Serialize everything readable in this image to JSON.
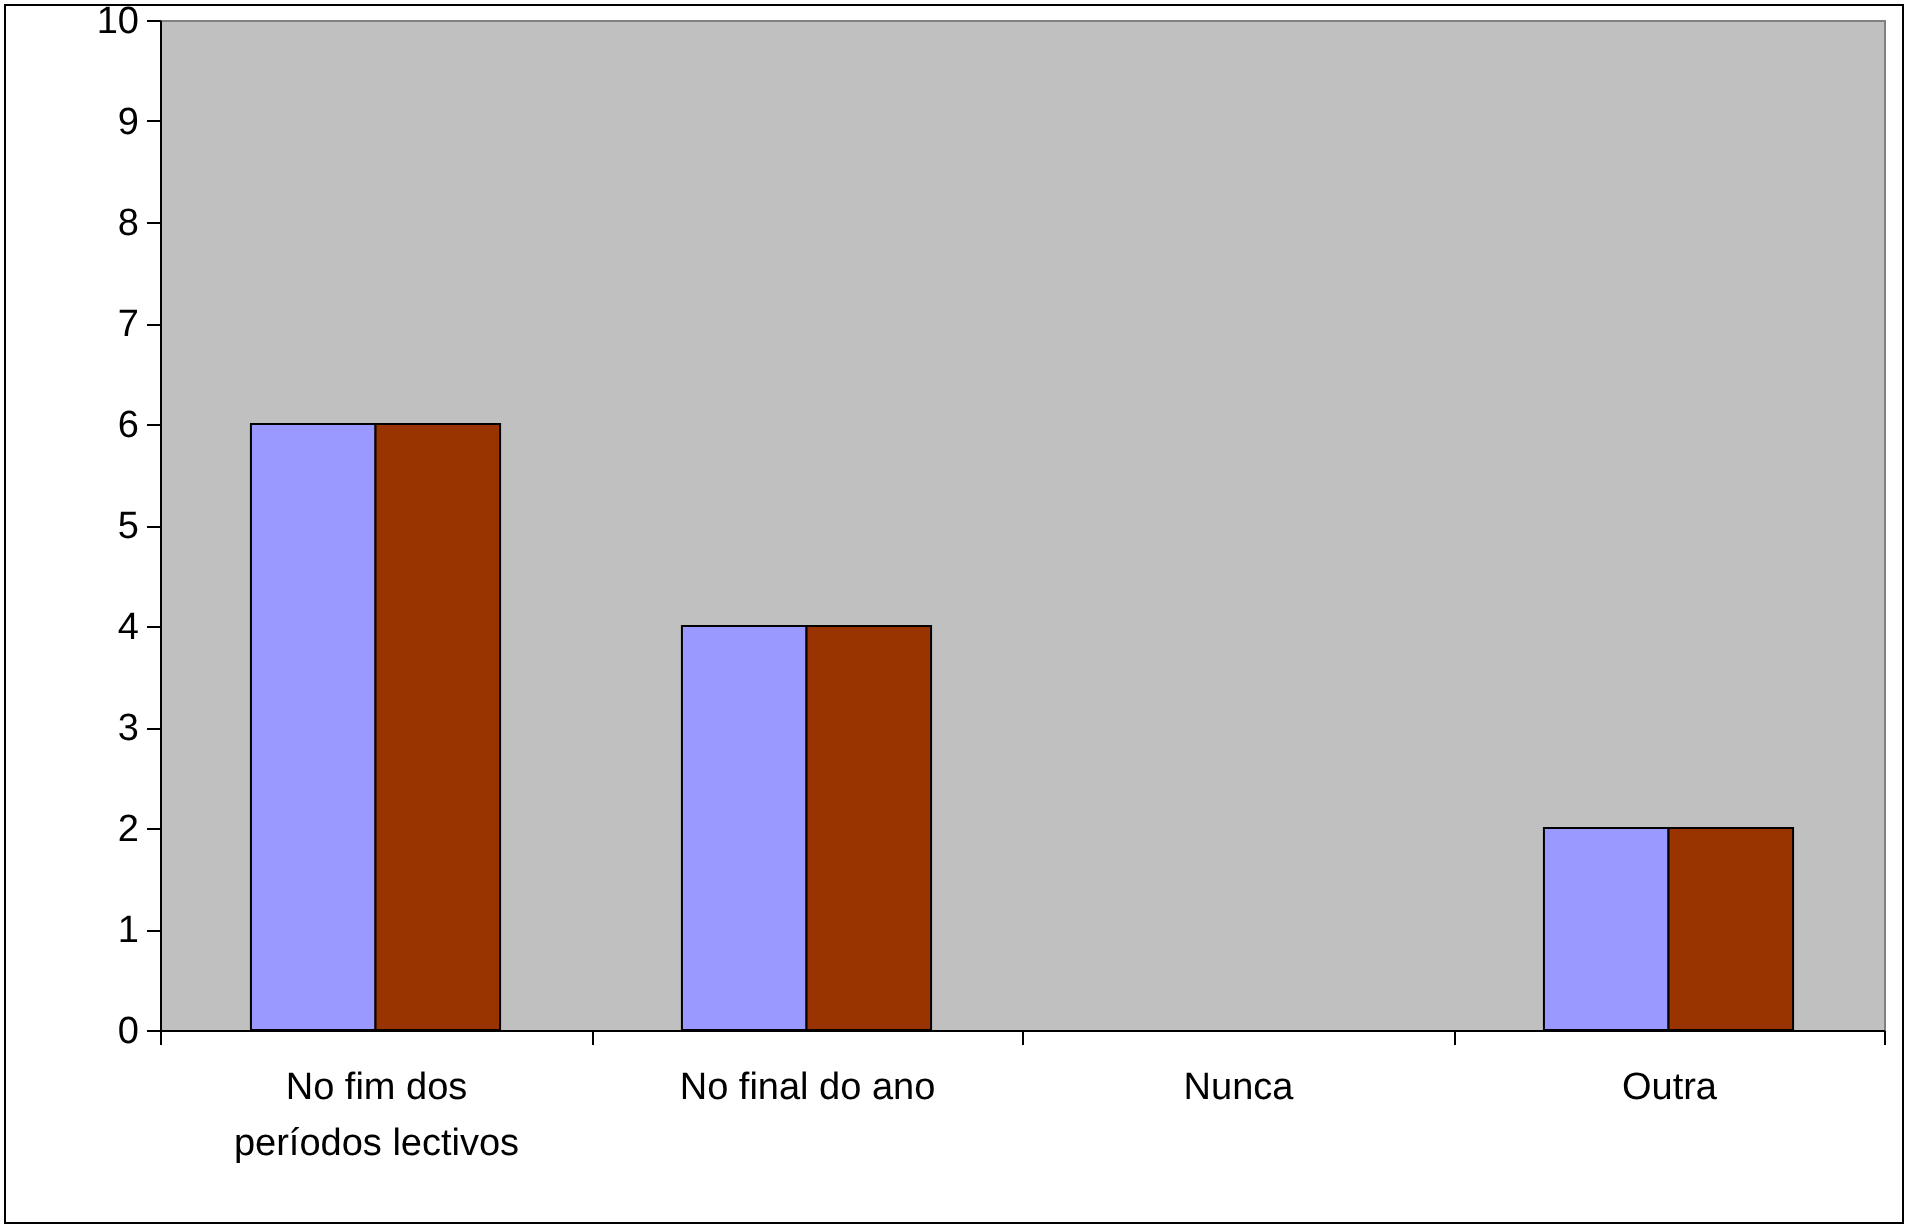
{
  "chart_data": {
    "type": "bar",
    "categories": [
      "No fim dos períodos lectivos",
      "No final do ano",
      "Nunca",
      "Outra"
    ],
    "series": [
      {
        "color": "#9999ff",
        "values": [
          6,
          4,
          0,
          2
        ]
      },
      {
        "color": "#993300",
        "values": [
          6,
          4,
          0,
          2
        ]
      }
    ],
    "ylim": [
      0,
      10
    ],
    "yticks": [
      0,
      1,
      2,
      3,
      4,
      5,
      6,
      7,
      8,
      9,
      10
    ]
  }
}
